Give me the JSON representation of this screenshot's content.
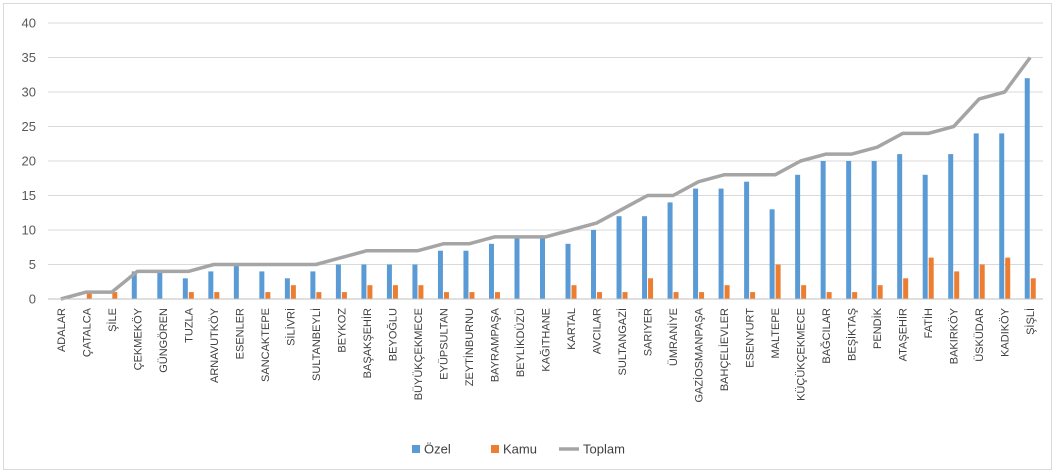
{
  "chart_data": {
    "type": "bar",
    "title": "",
    "xlabel": "",
    "ylabel": "",
    "ylim": [
      0,
      40
    ],
    "yticks": [
      0,
      5,
      10,
      15,
      20,
      25,
      30,
      35,
      40
    ],
    "grid": true,
    "legend_position": "bottom",
    "categories": [
      "ADALAR",
      "ÇATALCA",
      "ŞİLE",
      "ÇEKMEKÖY",
      "GÜNGÖREN",
      "TUZLA",
      "ARNAVUTKÖY",
      "ESENLER",
      "SANCAKTEPE",
      "SİLİVRİ",
      "SULTANBEYLİ",
      "BEYKOZ",
      "BAŞAKŞEHİR",
      "BEYOĞLU",
      "BÜYÜKÇEKMECE",
      "EYÜPSULTAN",
      "ZEYTİNBURNU",
      "BAYRAMPAŞA",
      "BEYLİKDÜZÜ",
      "KAĞITHANE",
      "KARTAL",
      "AVCILAR",
      "SULTANGAZİ",
      "SARIYER",
      "ÜMRANİYE",
      "GAZİOSMANPAŞA",
      "BAHÇELİEVLER",
      "ESENYURT",
      "MALTEPE",
      "KÜÇÜKÇEKMECE",
      "BAĞCILAR",
      "BEŞİKTAŞ",
      "PENDİK",
      "ATAŞEHİR",
      "FATİH",
      "BAKIRKÖY",
      "ÜSKÜDAR",
      "KADIKÖY",
      "ŞİŞLİ"
    ],
    "series": [
      {
        "name": "Özel",
        "type": "bar",
        "color": "#5b9bd5",
        "values": [
          0,
          0,
          0,
          4,
          4,
          3,
          4,
          5,
          4,
          3,
          4,
          5,
          5,
          5,
          5,
          7,
          7,
          8,
          9,
          9,
          8,
          10,
          12,
          12,
          14,
          16,
          16,
          17,
          13,
          18,
          20,
          20,
          20,
          21,
          18,
          21,
          24,
          24,
          32
        ]
      },
      {
        "name": "Kamu",
        "type": "bar",
        "color": "#ed7d31",
        "values": [
          0,
          1,
          1,
          0,
          0,
          1,
          1,
          0,
          1,
          2,
          1,
          1,
          2,
          2,
          2,
          1,
          1,
          1,
          0,
          0,
          2,
          1,
          1,
          3,
          1,
          1,
          2,
          1,
          5,
          2,
          1,
          1,
          2,
          3,
          6,
          4,
          5,
          6,
          3
        ]
      },
      {
        "name": "Toplam",
        "type": "line",
        "color": "#a5a5a5",
        "values": [
          0,
          1,
          1,
          4,
          4,
          4,
          5,
          5,
          5,
          5,
          5,
          6,
          7,
          7,
          7,
          8,
          8,
          9,
          9,
          9,
          10,
          11,
          13,
          15,
          15,
          17,
          18,
          18,
          18,
          20,
          21,
          21,
          22,
          24,
          24,
          25,
          29,
          30,
          35
        ]
      }
    ]
  }
}
